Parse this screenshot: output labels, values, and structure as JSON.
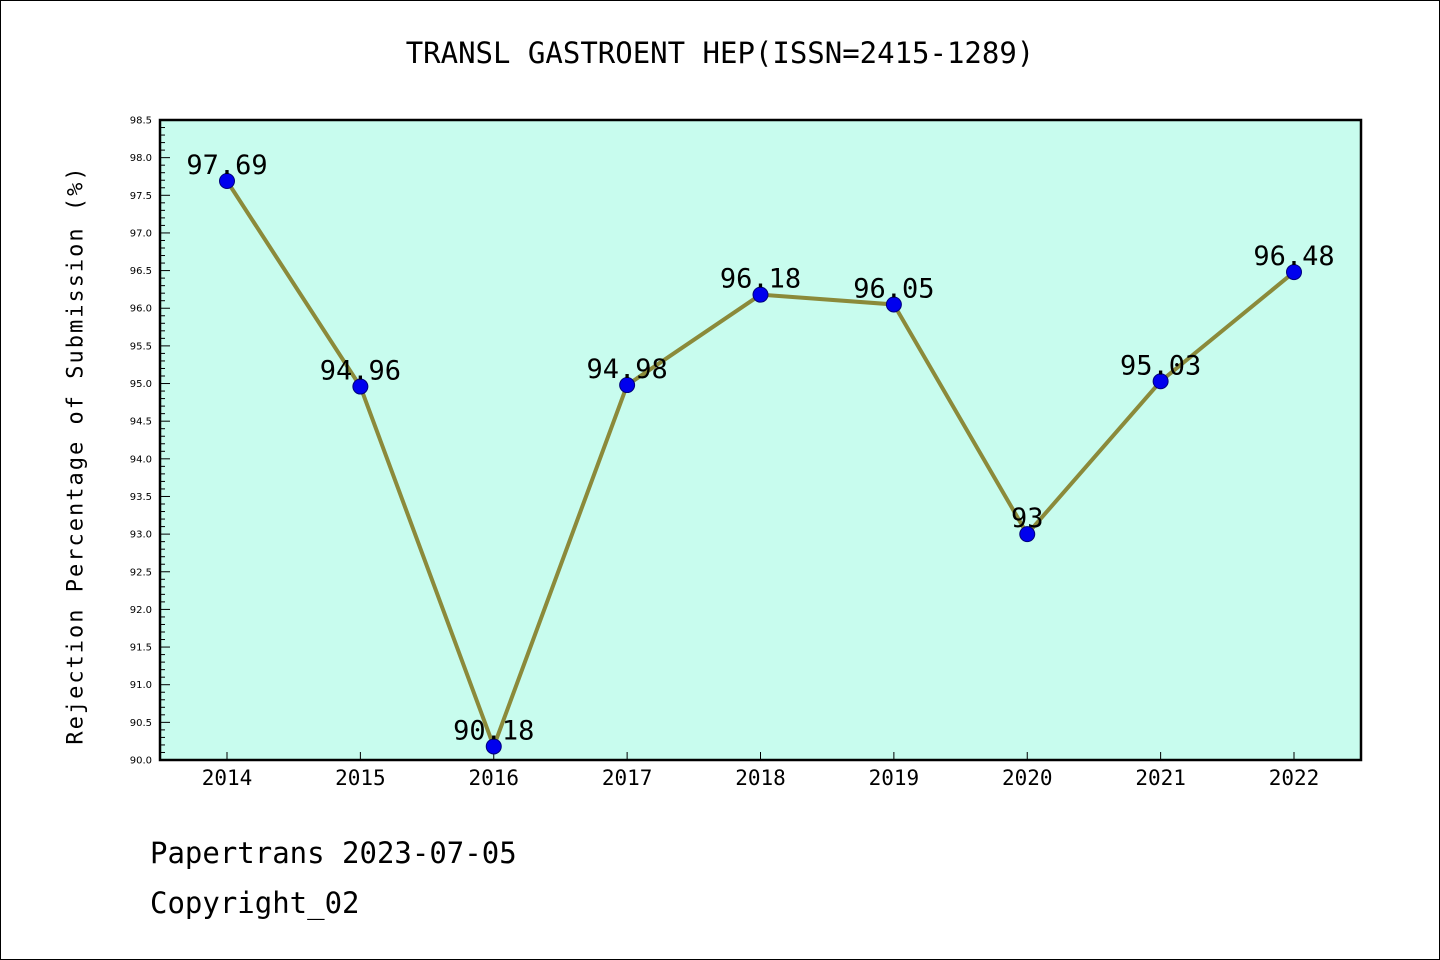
{
  "chart_data": {
    "type": "line",
    "title": "TRANSL GASTROENT HEP(ISSN=2415-1289)",
    "xlabel": "",
    "ylabel": "Rejection Percentage of Submission (%)",
    "categories": [
      "2014",
      "2015",
      "2016",
      "2017",
      "2018",
      "2019",
      "2020",
      "2021",
      "2022"
    ],
    "series": [
      {
        "values": [
          97.69,
          94.96,
          90.18,
          94.98,
          96.18,
          96.05,
          93,
          95.03,
          96.48
        ],
        "data_labels": [
          "97.69",
          "94.96",
          "90.18",
          "94.98",
          "96.18",
          "96.05",
          "93",
          "95.03",
          "96.48"
        ]
      }
    ],
    "ylim": [
      90.0,
      98.5
    ],
    "yticks": [
      "90.0",
      "90.5",
      "91.0",
      "91.5",
      "92.0",
      "92.5",
      "93.0",
      "93.5",
      "94.0",
      "94.5",
      "95.0",
      "95.5",
      "96.0",
      "96.5",
      "97.0",
      "97.5",
      "98.0",
      "98.5"
    ],
    "grid": false,
    "colors": {
      "plot_background": "#c8fcee",
      "line": "#8b8a3a",
      "marker": "#0000ee"
    }
  },
  "footer": {
    "line1": "Papertrans 2023-07-05",
    "line2": "Copyright_02"
  }
}
